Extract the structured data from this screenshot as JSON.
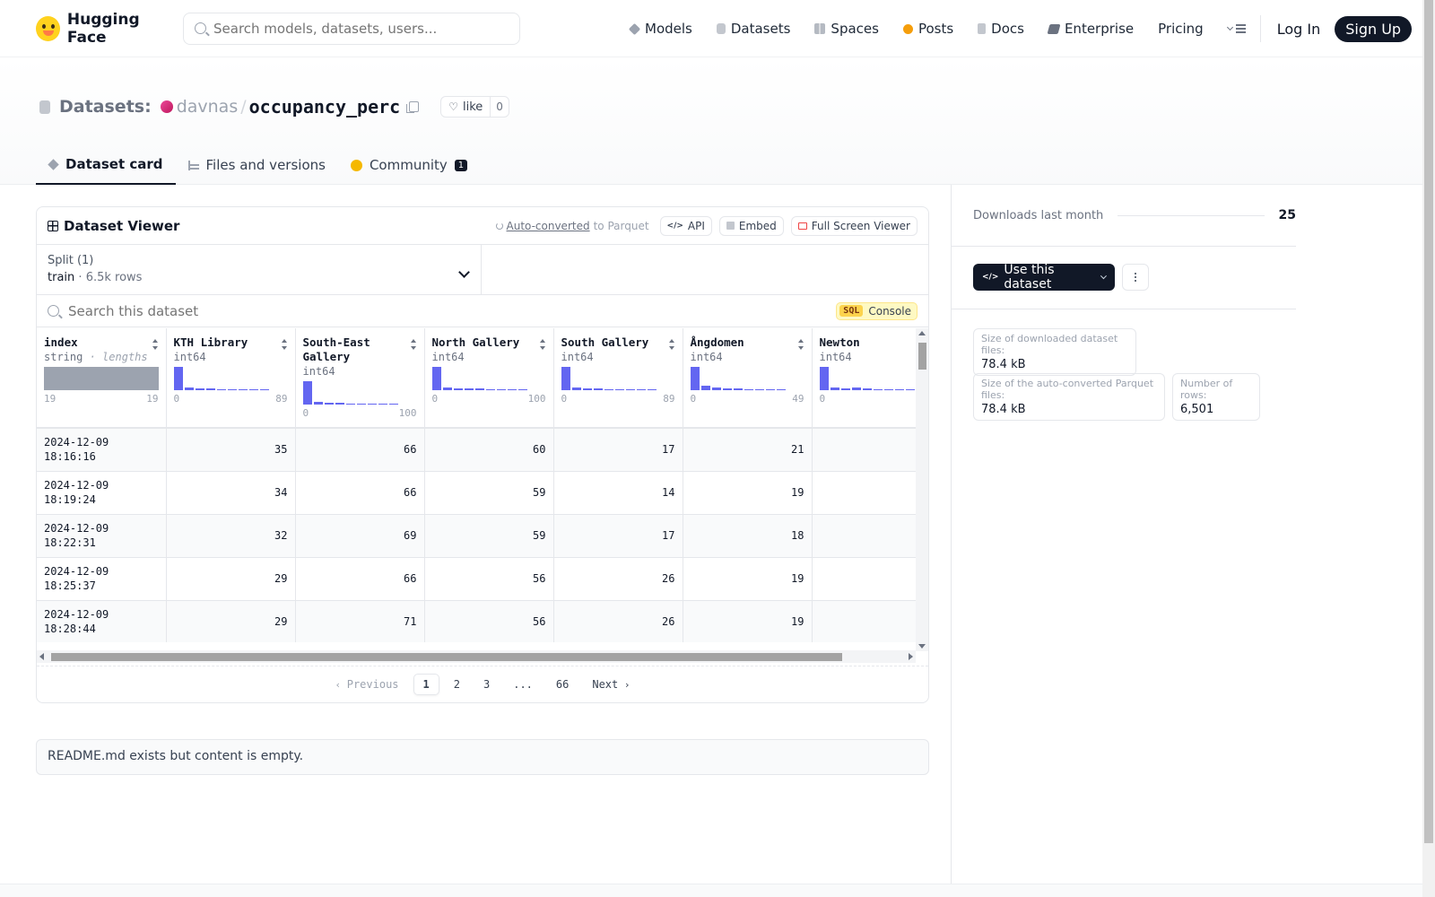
{
  "header": {
    "logo_text": "Hugging Face",
    "search_placeholder": "Search models, datasets, users...",
    "nav": [
      {
        "label": "Models",
        "icon": "cube-icon"
      },
      {
        "label": "Datasets",
        "icon": "database-icon"
      },
      {
        "label": "Spaces",
        "icon": "grid-icon"
      },
      {
        "label": "Posts",
        "icon": "bubble-icon"
      },
      {
        "label": "Docs",
        "icon": "doc-icon"
      },
      {
        "label": "Enterprise",
        "icon": "enterprise-icon"
      },
      {
        "label": "Pricing"
      }
    ],
    "login": "Log In",
    "signup": "Sign Up"
  },
  "repo": {
    "type_label": "Datasets:",
    "owner": "davnas",
    "separator": "/",
    "name": "occupancy_perc",
    "like_label": "like",
    "like_count": "0"
  },
  "tabs": [
    {
      "label": "Dataset card",
      "active": true
    },
    {
      "label": "Files and versions"
    },
    {
      "label": "Community",
      "badge": "1"
    }
  ],
  "viewer": {
    "title": "Dataset Viewer",
    "auto_link": "Auto-converted",
    "auto_suffix": "to Parquet",
    "api": "API",
    "embed": "Embed",
    "fullscreen": "Full Screen Viewer",
    "split_label": "Split (1)",
    "split_name": "train",
    "split_dot": "·",
    "split_rows": "6.5k rows",
    "search_placeholder": "Search this dataset",
    "sql_tag": "SQL",
    "console": "Console",
    "columns": [
      {
        "name": "index",
        "type": "string",
        "extra": "· lengths",
        "min": "19",
        "max": "19",
        "hist": []
      },
      {
        "name": "KTH Library",
        "type": "int64",
        "min": "0",
        "max": "89",
        "hist": [
          1.0,
          0.1,
          0.08,
          0.07,
          0.05,
          0.04,
          0.03,
          0.03,
          0.02
        ]
      },
      {
        "name": "South-East Gallery",
        "type": "int64",
        "min": "0",
        "max": "100",
        "hist": [
          1.0,
          0.1,
          0.08,
          0.07,
          0.05,
          0.04,
          0.03,
          0.03,
          0.02
        ]
      },
      {
        "name": "North Gallery",
        "type": "int64",
        "min": "0",
        "max": "100",
        "hist": [
          1.0,
          0.1,
          0.09,
          0.08,
          0.06,
          0.05,
          0.04,
          0.03,
          0.02
        ]
      },
      {
        "name": "South Gallery",
        "type": "int64",
        "min": "0",
        "max": "89",
        "hist": [
          1.0,
          0.12,
          0.08,
          0.07,
          0.05,
          0.04,
          0.03,
          0.03,
          0.02
        ]
      },
      {
        "name": "Ångdomen",
        "type": "int64",
        "min": "0",
        "max": "49",
        "hist": [
          1.0,
          0.18,
          0.12,
          0.08,
          0.06,
          0.05,
          0.04,
          0.03,
          0.02
        ]
      },
      {
        "name": "Newton",
        "type": "int64",
        "min": "0",
        "max": "",
        "hist": [
          1.0,
          0.1,
          0.08,
          0.1,
          0.06,
          0.05,
          0.04,
          0.03,
          0.02
        ]
      }
    ],
    "rows": [
      {
        "index": [
          "2024-12-09",
          "18:16:16"
        ],
        "values": [
          "35",
          "66",
          "60",
          "17",
          "21",
          ""
        ]
      },
      {
        "index": [
          "2024-12-09",
          "18:19:24"
        ],
        "values": [
          "34",
          "66",
          "59",
          "14",
          "19",
          ""
        ]
      },
      {
        "index": [
          "2024-12-09",
          "18:22:31"
        ],
        "values": [
          "32",
          "69",
          "59",
          "17",
          "18",
          ""
        ]
      },
      {
        "index": [
          "2024-12-09",
          "18:25:37"
        ],
        "values": [
          "29",
          "66",
          "56",
          "26",
          "19",
          ""
        ]
      },
      {
        "index": [
          "2024-12-09",
          "18:28:44"
        ],
        "values": [
          "29",
          "71",
          "56",
          "26",
          "19",
          ""
        ]
      },
      {
        "index": [
          "",
          ""
        ],
        "values": [
          "",
          "",
          "",
          "",
          "",
          ""
        ]
      }
    ],
    "pager": {
      "previous": "Previous",
      "pages": [
        "1",
        "2",
        "3",
        "...",
        "66"
      ],
      "current": "1",
      "next": "Next"
    }
  },
  "readme": "README.md exists but content is empty.",
  "sidebar": {
    "downloads_label": "Downloads last month",
    "downloads_value": "25",
    "use_button": "Use this dataset",
    "stats": [
      {
        "label": "Size of downloaded dataset files:",
        "value": "78.4 kB"
      },
      {
        "label": "Size of the auto-converted Parquet files:",
        "value": "78.4 kB"
      },
      {
        "label": "Number of rows:",
        "value": "6,501"
      }
    ]
  }
}
